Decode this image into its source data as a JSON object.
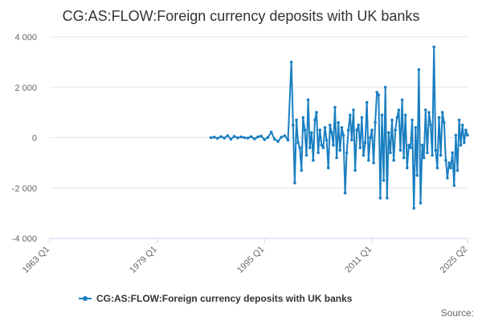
{
  "chart_data": {
    "type": "line",
    "title": "CG:AS:FLOW:Foreign currency deposits with UK banks",
    "xlabel": "",
    "ylabel": "",
    "x_range": [
      "1963 Q1",
      "2025 Q2"
    ],
    "ylim": [
      -4000,
      4000
    ],
    "y_ticks": [
      4000,
      2000,
      0,
      -2000,
      -4000
    ],
    "y_tick_labels": [
      "4 000",
      "2 000",
      "0",
      "-2 000",
      "-4 000"
    ],
    "x_ticks": [
      "1963 Q1",
      "1979 Q1",
      "1995 Q1",
      "2011 Q1",
      "2025 Q2"
    ],
    "grid": true,
    "legend_position": "bottom-center",
    "series_color": "#1a7fc1",
    "series": [
      {
        "name": "CG:AS:FLOW:Foreign currency deposits with UK banks",
        "x": [
          "1987 Q1",
          "1987 Q3",
          "1988 Q1",
          "1988 Q3",
          "1989 Q1",
          "1989 Q3",
          "1990 Q1",
          "1990 Q3",
          "1991 Q1",
          "1991 Q3",
          "1992 Q1",
          "1992 Q3",
          "1993 Q1",
          "1993 Q3",
          "1994 Q1",
          "1994 Q3",
          "1995 Q1",
          "1995 Q3",
          "1996 Q1",
          "1996 Q3",
          "1997 Q1",
          "1997 Q3",
          "1998 Q1",
          "1998 Q3",
          "1999 Q1",
          "1999 Q2",
          "1999 Q3",
          "1999 Q4",
          "2000 Q1",
          "2000 Q2",
          "2000 Q3",
          "2000 Q4",
          "2001 Q1",
          "2001 Q2",
          "2001 Q3",
          "2001 Q4",
          "2002 Q1",
          "2002 Q2",
          "2002 Q3",
          "2002 Q4",
          "2003 Q1",
          "2003 Q2",
          "2003 Q3",
          "2003 Q4",
          "2004 Q1",
          "2004 Q2",
          "2004 Q3",
          "2004 Q4",
          "2005 Q1",
          "2005 Q2",
          "2005 Q3",
          "2005 Q4",
          "2006 Q1",
          "2006 Q2",
          "2006 Q3",
          "2006 Q4",
          "2007 Q1",
          "2007 Q2",
          "2007 Q3",
          "2007 Q4",
          "2008 Q1",
          "2008 Q2",
          "2008 Q3",
          "2008 Q4",
          "2009 Q1",
          "2009 Q2",
          "2009 Q3",
          "2009 Q4",
          "2010 Q1",
          "2010 Q2",
          "2010 Q3",
          "2010 Q4",
          "2011 Q1",
          "2011 Q2",
          "2011 Q3",
          "2011 Q4",
          "2012 Q1",
          "2012 Q2",
          "2012 Q3",
          "2012 Q4",
          "2013 Q1",
          "2013 Q2",
          "2013 Q3",
          "2013 Q4",
          "2014 Q1",
          "2014 Q2",
          "2014 Q3",
          "2014 Q4",
          "2015 Q1",
          "2015 Q2",
          "2015 Q3",
          "2015 Q4",
          "2016 Q1",
          "2016 Q2",
          "2016 Q3",
          "2016 Q4",
          "2017 Q1",
          "2017 Q2",
          "2017 Q3",
          "2017 Q4",
          "2018 Q1",
          "2018 Q2",
          "2018 Q3",
          "2018 Q4",
          "2019 Q1",
          "2019 Q2",
          "2019 Q3",
          "2019 Q4",
          "2020 Q1",
          "2020 Q2",
          "2020 Q3",
          "2020 Q4",
          "2021 Q1",
          "2021 Q2",
          "2021 Q3",
          "2021 Q4",
          "2022 Q1",
          "2022 Q2",
          "2022 Q3",
          "2022 Q4",
          "2023 Q1",
          "2023 Q2",
          "2023 Q3",
          "2023 Q4",
          "2024 Q1",
          "2024 Q2",
          "2024 Q3",
          "2024 Q4",
          "2025 Q1",
          "2025 Q2"
        ],
        "values": [
          0,
          20,
          -30,
          40,
          -20,
          80,
          -60,
          50,
          -10,
          30,
          0,
          -20,
          40,
          -50,
          30,
          60,
          -80,
          10,
          220,
          -60,
          -150,
          20,
          80,
          -100,
          3000,
          500,
          -1800,
          700,
          -200,
          -400,
          -1300,
          800,
          300,
          -700,
          1500,
          -400,
          200,
          -900,
          700,
          1000,
          -600,
          300,
          -300,
          -400,
          400,
          -100,
          -1200,
          500,
          200,
          -300,
          1200,
          -800,
          600,
          -500,
          400,
          100,
          -2200,
          -600,
          300,
          900,
          -100,
          1100,
          -1300,
          300,
          500,
          -400,
          800,
          -700,
          -200,
          1400,
          -900,
          0,
          300,
          -1000,
          600,
          1800,
          1700,
          -2400,
          900,
          -1700,
          2000,
          -2400,
          200,
          -600,
          700,
          -900,
          300,
          800,
          1100,
          -500,
          1500,
          -800,
          900,
          -1200,
          -300,
          -400,
          700,
          -2800,
          400,
          -1500,
          2700,
          -2600,
          -300,
          -800,
          1100,
          -600,
          1000,
          500,
          -700,
          3600,
          -500,
          -1200,
          800,
          -700,
          1000,
          600,
          -900,
          -1600,
          -1000,
          -1200,
          -600,
          -1900,
          100,
          -1300,
          700,
          -300,
          500,
          -200,
          300,
          100
        ]
      }
    ],
    "legend": {
      "label": "CG:AS:FLOW:Foreign currency deposits with UK banks"
    },
    "source_label": "Source:"
  }
}
